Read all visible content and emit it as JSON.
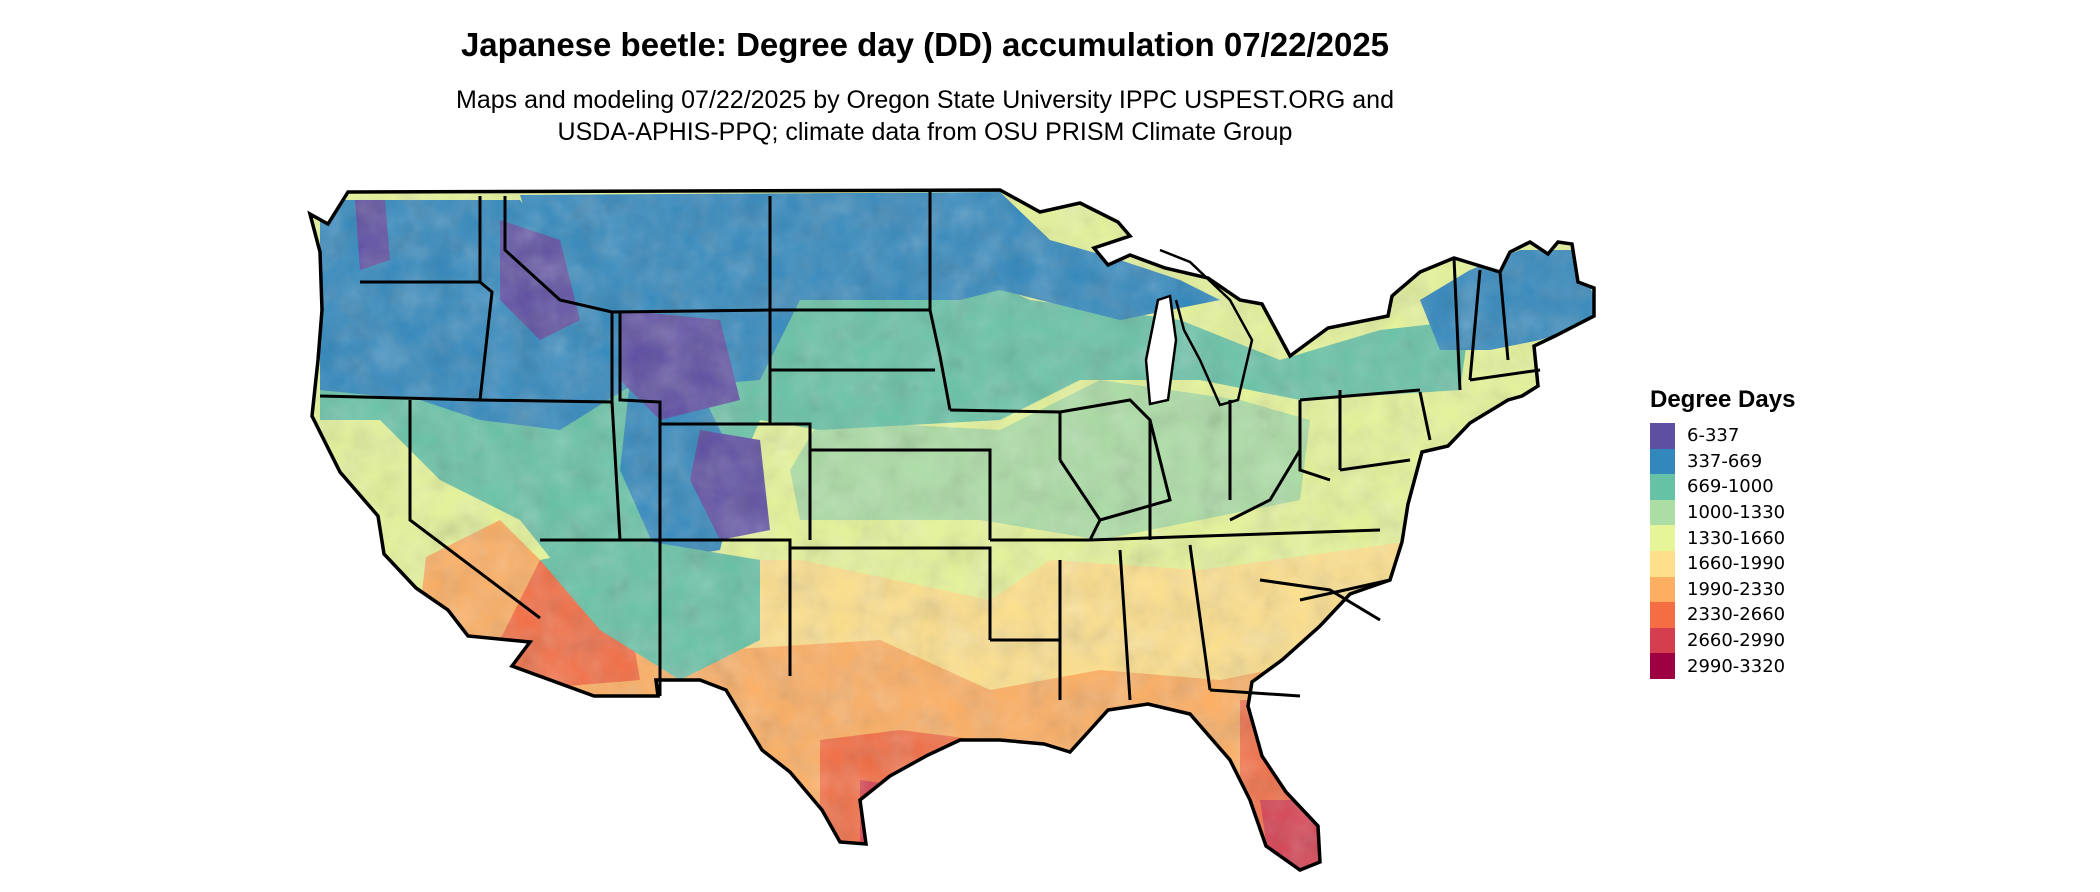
{
  "title": "Japanese beetle: Degree day (DD) accumulation 07/22/2025",
  "subtitle": [
    "Maps and modeling 07/22/2025 by Oregon State University IPPC USPEST.ORG and",
    "USDA-APHIS-PPQ; climate data from OSU PRISM Climate Group"
  ],
  "legend": {
    "title": "Degree Days",
    "items": [
      {
        "label": "6-337",
        "color": "#5e4fa2"
      },
      {
        "label": "337-669",
        "color": "#3288bd"
      },
      {
        "label": "669-1000",
        "color": "#66c2a5"
      },
      {
        "label": "1000-1330",
        "color": "#abdda4"
      },
      {
        "label": "1330-1660",
        "color": "#e6f598"
      },
      {
        "label": "1660-1990",
        "color": "#fee08b"
      },
      {
        "label": "1990-2330",
        "color": "#fdae61"
      },
      {
        "label": "2330-2660",
        "color": "#f46d43"
      },
      {
        "label": "2660-2990",
        "color": "#d53e4f"
      },
      {
        "label": "2990-3320",
        "color": "#9e0142"
      }
    ]
  }
}
